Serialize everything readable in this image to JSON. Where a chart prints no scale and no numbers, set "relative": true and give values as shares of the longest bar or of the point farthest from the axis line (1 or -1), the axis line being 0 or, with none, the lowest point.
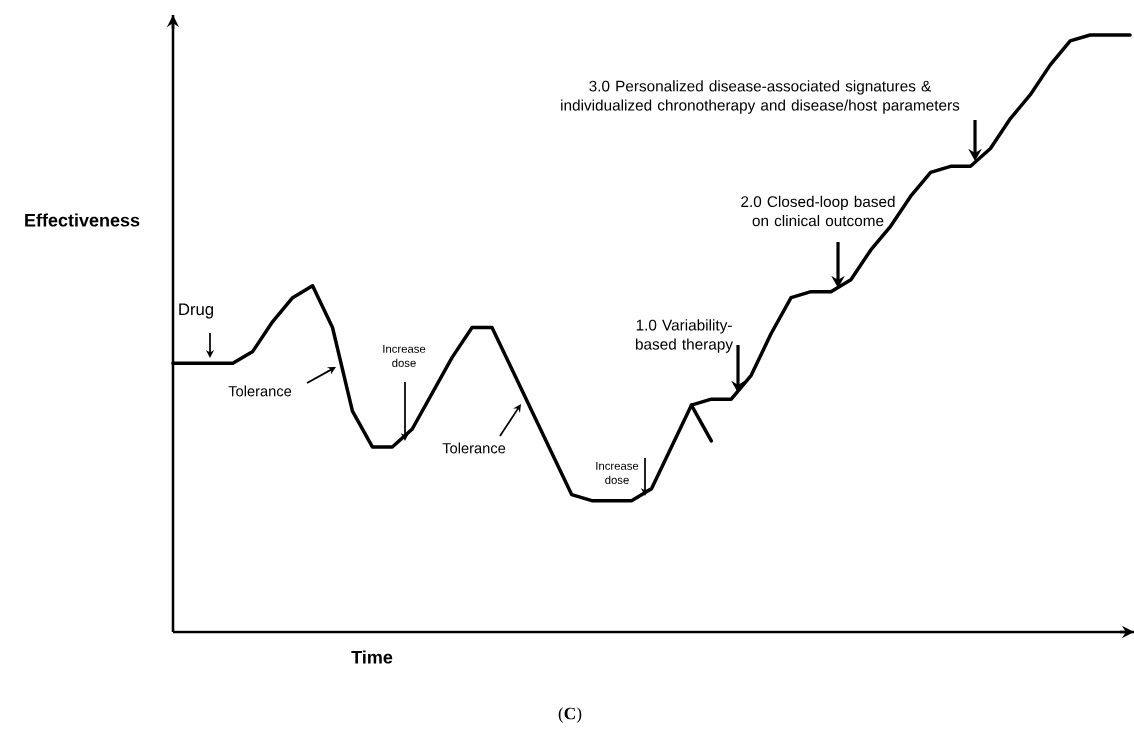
{
  "chart_data": {
    "type": "line",
    "relative": true,
    "xlabel": "Time",
    "ylabel": "Effectiveness",
    "categories": [
      null,
      null,
      null,
      null,
      null,
      null,
      null,
      null,
      null,
      null,
      null,
      null,
      null,
      null,
      null,
      null,
      null,
      null,
      null,
      null,
      null,
      null,
      null,
      null,
      null,
      null,
      null,
      null,
      null,
      null,
      null,
      null,
      null,
      null,
      null,
      null,
      null,
      null,
      null,
      null,
      null,
      null,
      null,
      null,
      null,
      null,
      null,
      null,
      null
    ],
    "series": [
      {
        "color": "#000000",
        "values": [
          0.45,
          0.45,
          0.45,
          0.45,
          0.47,
          0.52,
          0.56,
          0.58,
          0.51,
          0.37,
          0.31,
          0.31,
          0.34,
          0.4,
          0.46,
          0.51,
          0.51,
          0.44,
          0.37,
          0.3,
          0.23,
          0.22,
          0.22,
          0.22,
          0.24,
          0.31,
          0.38,
          0.39,
          0.39,
          0.43,
          0.5,
          0.56,
          0.57,
          0.57,
          0.59,
          0.64,
          0.68,
          0.73,
          0.77,
          0.78,
          0.78,
          0.81,
          0.86,
          0.9,
          0.95,
          0.99,
          1,
          1,
          1
        ]
      },
      {
        "color": "#000000",
        "values": [
          null,
          null,
          null,
          null,
          null,
          null,
          null,
          null,
          null,
          null,
          null,
          null,
          null,
          null,
          null,
          null,
          null,
          null,
          null,
          null,
          null,
          null,
          null,
          null,
          null,
          null,
          0.38,
          0.32,
          null,
          null,
          null,
          null,
          null,
          null,
          null,
          null,
          null,
          null,
          null,
          null,
          null,
          null,
          null,
          null,
          null,
          null,
          null,
          null,
          null
        ]
      }
    ],
    "annotations": [
      "Drug",
      "Tolerance",
      "Increase dose",
      "Tolerance",
      "Increase dose",
      "1.0 Variability-based therapy",
      "2.0 Closed-loop based on clinical outcome",
      "3.0 Personalized disease-associated signatures & individualized chronotherapy and disease/host parameters",
      "(**C**)"
    ]
  }
}
